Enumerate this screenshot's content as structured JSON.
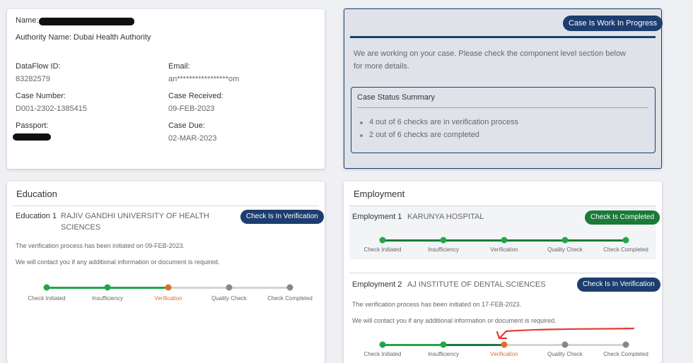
{
  "profile": {
    "name_label": "Name:",
    "authority": "Authority Name: Dubai Health Authority",
    "dataflow_label": "DataFlow ID:",
    "dataflow_value": "83282579",
    "email_label": "Email:",
    "email_value": "an*****************om",
    "case_number_label": "Case Number:",
    "case_number_value": "D001-2302-1385415",
    "case_received_label": "Case Received:",
    "case_received_value": "09-FEB-2023",
    "passport_label": "Passport:",
    "case_due_label": "Case Due:",
    "case_due_value": "02-MAR-2023"
  },
  "status": {
    "badge": "Case Is Work In Progress",
    "message": "We are working on your case. Please check the component level section below for more details.",
    "summary_title": "Case Status Summary",
    "items": [
      "4 out of 6 checks are in verification process",
      "2 out of 6 checks are completed"
    ]
  },
  "steps": [
    "Check Initiated",
    "Insufficiency",
    "Verification",
    "Quality Check",
    "Check Completed"
  ],
  "education": {
    "title": "Education",
    "item_label": "Education 1",
    "item_name": "RAJIV GANDHI UNIVERSITY OF HEALTH SCIENCES",
    "badge": "Check Is In Verification",
    "note1": "The verification process has been initiated on 09-FEB-2023.",
    "note2": "We will contact you if any additional information or document is required.",
    "progress_current_step": 3
  },
  "employment": {
    "title": "Employment",
    "items": [
      {
        "label": "Employment 1",
        "name": "KARUNYA HOSPITAL",
        "badge": "Check Is Completed",
        "progress_current_step": 5
      },
      {
        "label": "Employment 2",
        "name": "AJ INSTITUTE OF DENTAL SCIENCES",
        "badge": "Check Is In Verification",
        "note1": "The verification process has been initiated on 17-FEB-2023.",
        "note2": "We will contact you if any additional information or document is required.",
        "progress_current_step": 3
      }
    ]
  },
  "colors": {
    "badge_blue": "#1c3d6e",
    "badge_green": "#1b7a3a",
    "progress_done": "#22a64a",
    "progress_current": "#e06d2c",
    "progress_pending": "#888888",
    "annotation_red": "#e53935"
  }
}
